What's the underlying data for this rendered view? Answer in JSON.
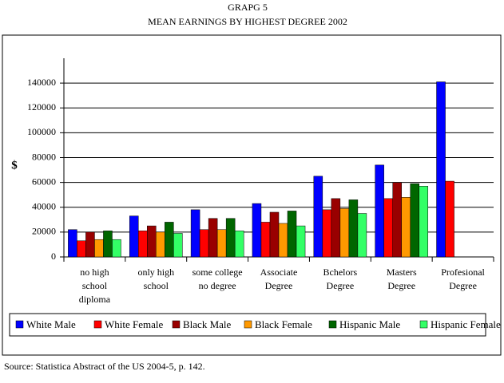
{
  "chart_data": {
    "type": "bar",
    "title": "GRAPG 5",
    "subtitle": "MEAN EARNINGS BY HIGHEST DEGREE 2002",
    "y_label": "$",
    "source": "Source: Statistica Abstract of the US 2004-5, p. 142.",
    "categories": [
      "no high\nschool\ndiploma",
      "only high\nschool",
      "some college\nno degree",
      "Associate\nDegree",
      "Bchelors\nDegree",
      "Masters\nDegree",
      "Profesional\nDegree"
    ],
    "series": [
      {
        "name": "White Male",
        "color": "#0000ff",
        "values": [
          22000,
          33000,
          38000,
          43000,
          65000,
          74000,
          141000
        ]
      },
      {
        "name": "White Female",
        "color": "#ff0000",
        "values": [
          13000,
          21000,
          22000,
          28000,
          38000,
          47000,
          61000
        ]
      },
      {
        "name": "Black Male",
        "color": "#990000",
        "values": [
          20000,
          25000,
          31000,
          36000,
          47000,
          60000,
          null
        ]
      },
      {
        "name": "Black Female",
        "color": "#ff9900",
        "values": [
          14000,
          20000,
          22000,
          27000,
          39000,
          48000,
          null
        ]
      },
      {
        "name": "Hispanic Male",
        "color": "#006600",
        "values": [
          21000,
          28000,
          31000,
          37000,
          46000,
          59000,
          null
        ]
      },
      {
        "name": "Hispanic Female",
        "color": "#33ff66",
        "values": [
          14000,
          19000,
          21000,
          25000,
          35000,
          57000,
          null
        ]
      }
    ],
    "ylim": [
      0,
      160000
    ],
    "yticks": [
      0,
      20000,
      40000,
      60000,
      80000,
      100000,
      120000,
      140000
    ],
    "grid": true
  }
}
